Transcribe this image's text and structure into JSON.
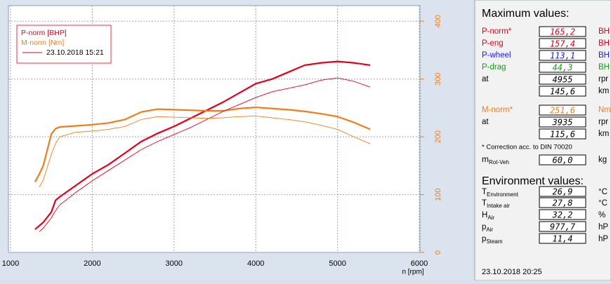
{
  "chart_data": {
    "type": "line",
    "xlabel": "n [rpm]",
    "x": [
      1300,
      1350,
      1400,
      1500,
      1550,
      1600,
      1800,
      2000,
      2200,
      2400,
      2600,
      2800,
      3000,
      3200,
      3400,
      3600,
      3800,
      4000,
      4200,
      4400,
      4600,
      4800,
      5000,
      5200,
      5400
    ],
    "xlim": [
      1000,
      6000
    ],
    "xticks": [
      1000,
      2000,
      3000,
      4000,
      5000,
      6000
    ],
    "ylim": [
      0,
      213.5
    ],
    "y2lim": [
      0,
      427
    ],
    "y2ticks": [
      0,
      100,
      200,
      300,
      400
    ],
    "grid": true,
    "legend": "top-left",
    "series": [
      {
        "name": "P-norm [BHP]",
        "color": "#e3001b",
        "width": 2.2,
        "values": [
          20,
          23,
          26,
          35,
          45,
          48,
          58,
          68,
          76,
          86,
          96,
          103,
          109,
          116,
          123,
          130,
          138,
          146,
          150,
          156,
          162,
          164,
          165.2,
          164,
          162
        ]
      },
      {
        "name": "M-norm [Nm]",
        "color": "#f07d1a",
        "width": 2.2,
        "axis": "y2",
        "values": [
          122,
          135,
          150,
          205,
          214,
          217,
          219,
          221,
          224,
          230,
          243,
          248,
          247,
          246,
          245,
          245,
          249,
          251,
          249,
          247,
          244,
          240,
          235,
          225,
          213
        ]
      },
      {
        "name": "23.10.2018 15:21",
        "color": "#e3001b",
        "width": 0.9,
        "values": [
          null,
          18,
          21,
          30,
          36,
          41,
          52,
          62,
          71,
          80,
          89,
          96,
          102,
          108,
          115,
          122,
          128,
          134,
          139,
          142,
          145,
          149,
          151,
          148,
          143
        ]
      },
      {
        "color": "#f07d1a",
        "width": 0.9,
        "axis": "y2",
        "values": [
          null,
          113,
          125,
          170,
          188,
          200,
          208,
          210,
          213,
          218,
          230,
          235,
          234,
          233,
          232,
          233,
          235,
          236,
          233,
          230,
          226,
          220,
          213,
          200,
          188
        ]
      }
    ]
  },
  "panel": {
    "title": "Maximum values:",
    "rows": [
      {
        "label": "P-norm*",
        "value": "165,2",
        "unit": "BH",
        "color": "#e3001b"
      },
      {
        "label": "P-eng",
        "value": "157,4",
        "unit": "BH",
        "color": "#e3001b"
      },
      {
        "label": "P-wheel",
        "value": "113,1",
        "unit": "BH",
        "color": "#1a1aff"
      },
      {
        "label": "P-drag",
        "value": "44,3",
        "unit": "BH",
        "color": "#1a9a1a"
      },
      {
        "label": "at",
        "value": "4955",
        "unit": "rpr",
        "color": "#000000"
      },
      {
        "value": "145,6",
        "unit": "km",
        "color": "#000000"
      },
      {
        "label": "M-norm*",
        "value": "251,6",
        "unit": "Nm",
        "color": "#f07d1a"
      },
      {
        "label": "at",
        "value": "3935",
        "unit": "rpr",
        "color": "#000000"
      },
      {
        "value": "115,6",
        "unit": "km",
        "color": "#000000"
      }
    ],
    "note": "* Correction acc. to DIN 70020",
    "mass": {
      "label": "m",
      "sub": "Rot-Veh",
      "value": "60,0",
      "unit": "kg"
    },
    "env_title": "Environment values:",
    "env": [
      {
        "label": "T",
        "sub": "Environment",
        "value": "26,9",
        "unit": "°C"
      },
      {
        "label": "T",
        "sub": "Intake air",
        "value": "27,8",
        "unit": "°C"
      },
      {
        "label": "H",
        "sub": "Air",
        "value": "32,2",
        "unit": "%"
      },
      {
        "label": "p",
        "sub": "Air",
        "value": "977,7",
        "unit": "hP"
      },
      {
        "label": "p",
        "sub": "Steam",
        "value": "11,4",
        "unit": "hP"
      }
    ],
    "footer": "23.10.2018  20:25"
  }
}
